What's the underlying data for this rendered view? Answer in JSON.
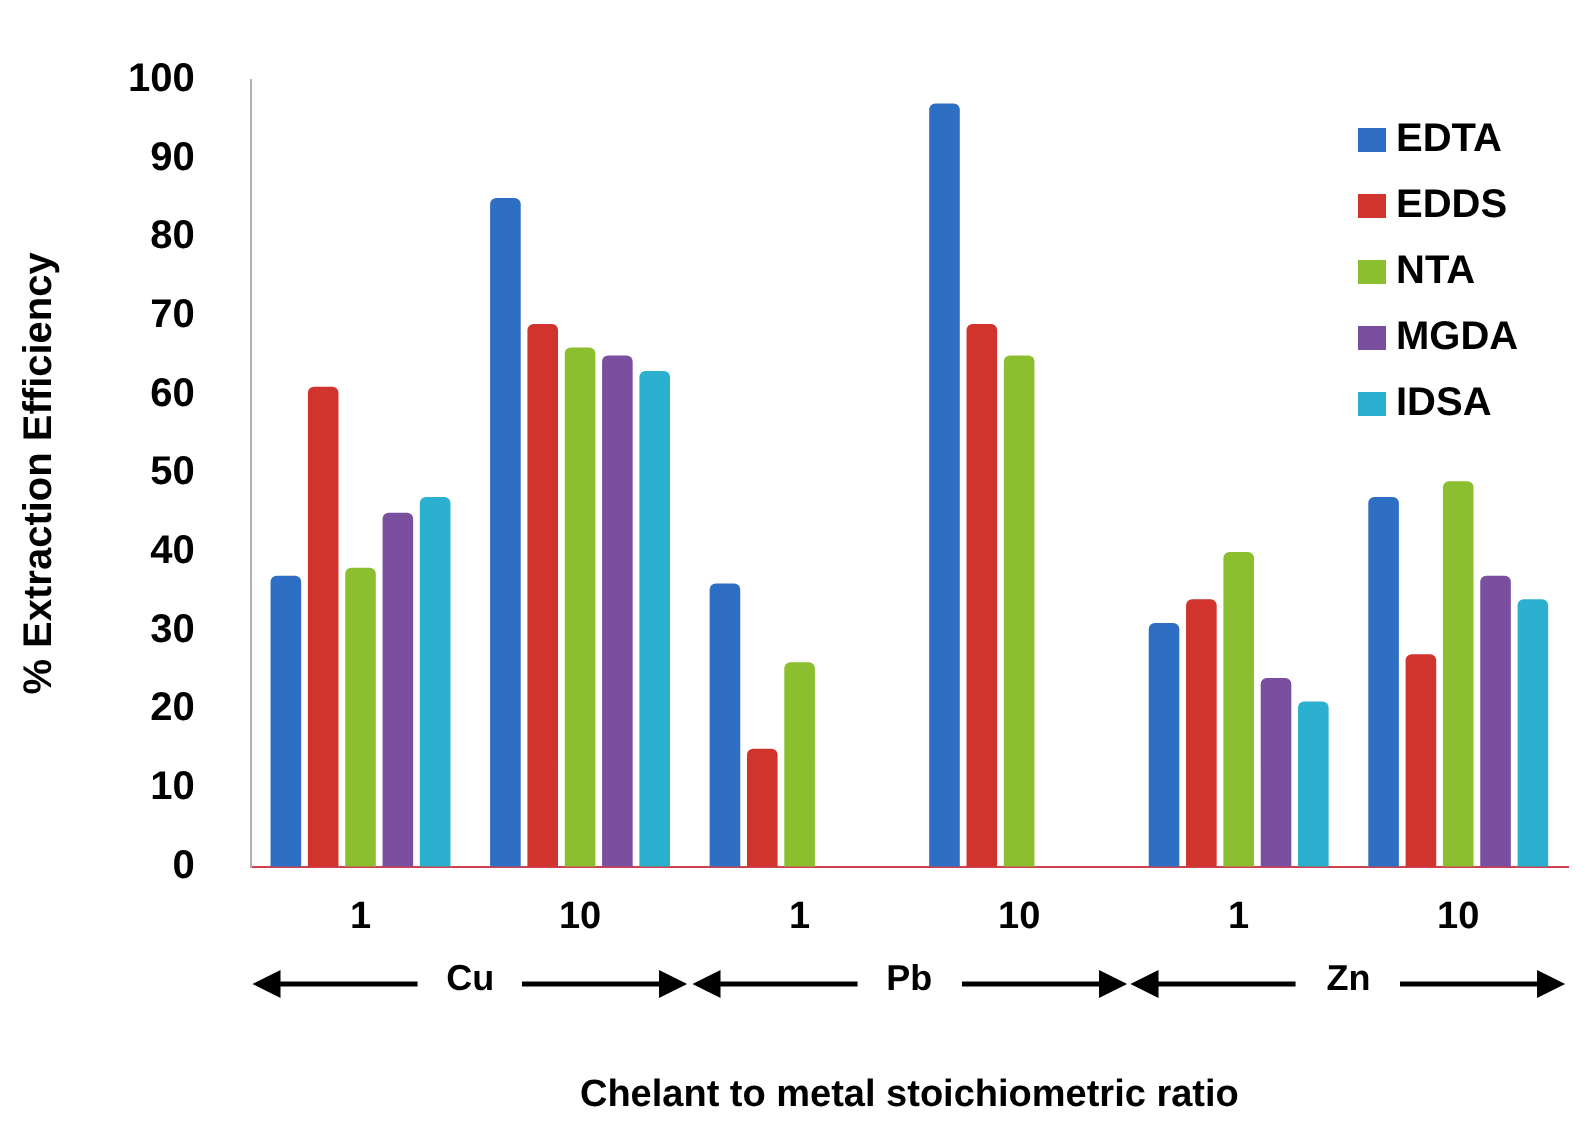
{
  "chart_data": {
    "type": "bar",
    "ylabel": "% Extraction Efficiency",
    "xlabel": "Chelant to metal stoichiometric ratio",
    "categories": [
      "1",
      "10",
      "1",
      "10",
      "1",
      "10"
    ],
    "annotations": [
      "Cu",
      "Pb",
      "Zn"
    ],
    "series": [
      {
        "name": "EDTA",
        "color": "#2e6fc4",
        "values": [
          37,
          85,
          36,
          97,
          31,
          47
        ]
      },
      {
        "name": "EDDS",
        "color": "#d0342c",
        "values": [
          61,
          69,
          15,
          69,
          34,
          27
        ]
      },
      {
        "name": "NTA",
        "color": "#8cbf2f",
        "values": [
          38,
          66,
          26,
          65,
          40,
          49
        ]
      },
      {
        "name": "MGDA",
        "color": "#7a4fa0",
        "values": [
          45,
          65,
          null,
          null,
          24,
          37
        ]
      },
      {
        "name": "IDSA",
        "color": "#2bb0d0",
        "values": [
          47,
          63,
          null,
          null,
          21,
          34
        ]
      }
    ],
    "ylim": [
      0,
      100
    ],
    "yticks": [
      0,
      10,
      20,
      30,
      40,
      50,
      60,
      70,
      80,
      90,
      100
    ],
    "grid": false,
    "legend": "top right"
  }
}
